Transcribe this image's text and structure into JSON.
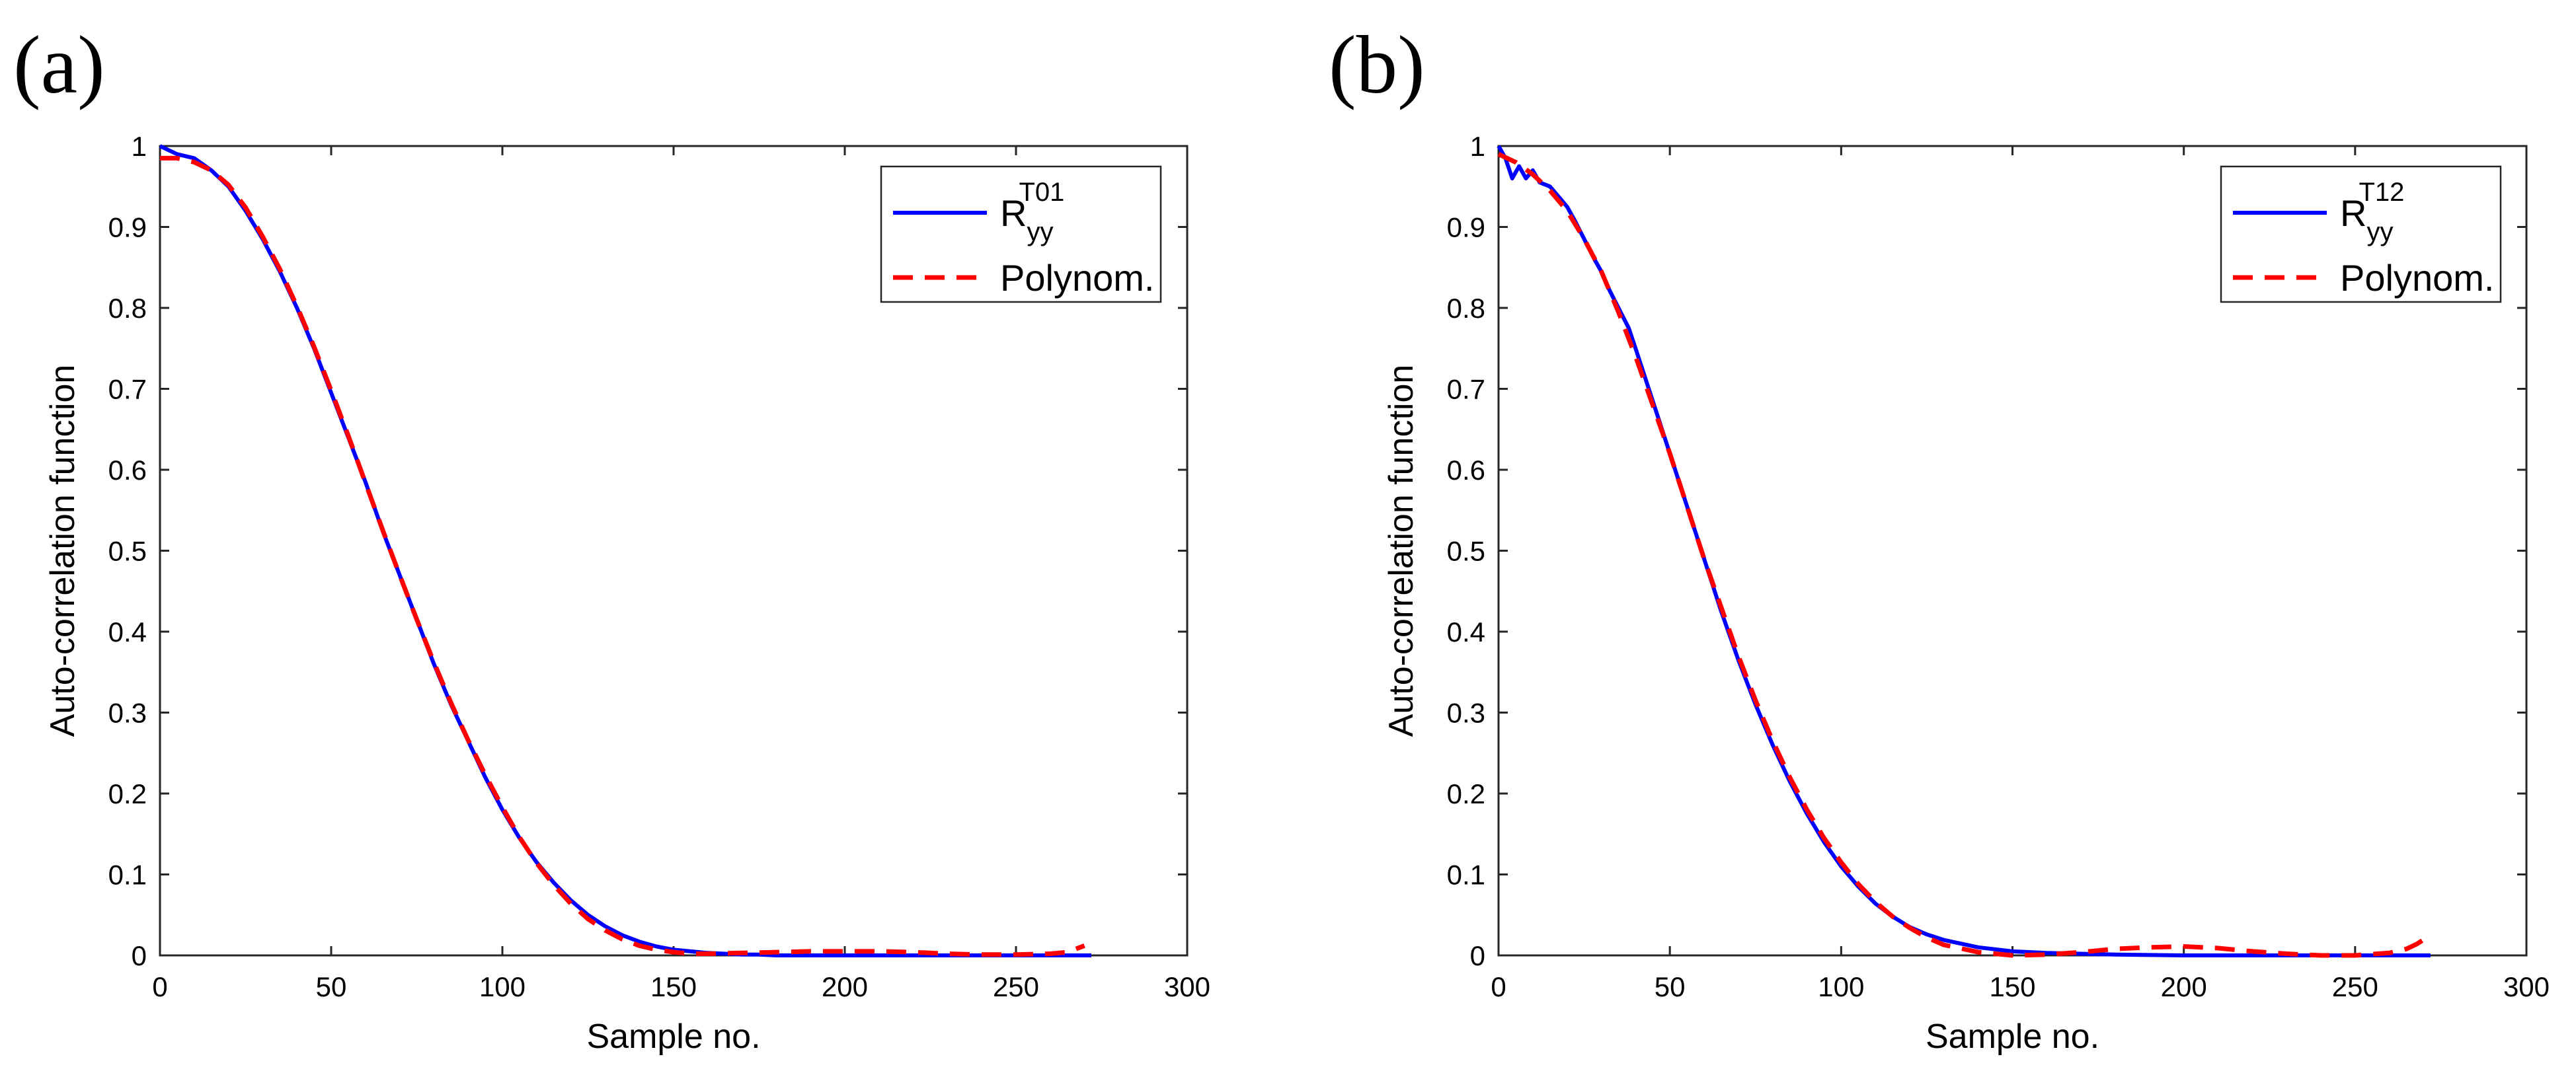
{
  "chart_data": [
    {
      "type": "line",
      "panel_label": "(a)",
      "xlabel": "Sample no.",
      "ylabel": "Auto-correlation function",
      "xlim": [
        0,
        300
      ],
      "ylim": [
        0,
        1
      ],
      "xticks": [
        0,
        50,
        100,
        150,
        200,
        250,
        300
      ],
      "yticks": [
        0,
        0.1,
        0.2,
        0.3,
        0.4,
        0.5,
        0.6,
        0.7,
        0.8,
        0.9,
        1
      ],
      "grid": false,
      "legend_position": "top-right",
      "series": [
        {
          "name": "R_yy^T01",
          "legend_base": "R",
          "legend_sub": "yy",
          "legend_sup": "T01",
          "color": "#0000FF",
          "style": "solid",
          "x": [
            0,
            5,
            10,
            15,
            20,
            25,
            30,
            35,
            40,
            45,
            50,
            55,
            60,
            65,
            70,
            75,
            80,
            85,
            90,
            95,
            100,
            105,
            110,
            115,
            120,
            125,
            130,
            135,
            140,
            145,
            150,
            155,
            160,
            165,
            170,
            175,
            180,
            190,
            200,
            220,
            240,
            260,
            272
          ],
          "y": [
            1.0,
            0.99,
            0.985,
            0.97,
            0.95,
            0.92,
            0.885,
            0.845,
            0.8,
            0.75,
            0.695,
            0.64,
            0.585,
            0.525,
            0.47,
            0.415,
            0.36,
            0.31,
            0.265,
            0.22,
            0.18,
            0.145,
            0.115,
            0.09,
            0.068,
            0.05,
            0.036,
            0.025,
            0.017,
            0.011,
            0.007,
            0.005,
            0.003,
            0.002,
            0.001,
            0.001,
            0.0,
            0.0,
            0.0,
            0.0,
            0.0,
            0.0,
            0.0
          ]
        },
        {
          "name": "Polynom.",
          "legend_base": "Polynom.",
          "color": "#FF0000",
          "style": "dashed",
          "x": [
            0,
            5,
            10,
            15,
            20,
            25,
            30,
            35,
            40,
            45,
            50,
            55,
            60,
            65,
            70,
            75,
            80,
            85,
            90,
            95,
            100,
            105,
            110,
            115,
            120,
            125,
            130,
            135,
            140,
            145,
            150,
            155,
            160,
            170,
            180,
            190,
            200,
            210,
            220,
            230,
            240,
            250,
            260,
            265,
            270
          ],
          "y": [
            0.985,
            0.985,
            0.98,
            0.97,
            0.952,
            0.924,
            0.888,
            0.848,
            0.802,
            0.752,
            0.698,
            0.642,
            0.584,
            0.526,
            0.47,
            0.415,
            0.362,
            0.312,
            0.266,
            0.223,
            0.183,
            0.146,
            0.114,
            0.087,
            0.064,
            0.045,
            0.031,
            0.02,
            0.012,
            0.007,
            0.004,
            0.002,
            0.002,
            0.003,
            0.004,
            0.005,
            0.005,
            0.005,
            0.004,
            0.002,
            0.001,
            0.001,
            0.002,
            0.004,
            0.012
          ]
        }
      ]
    },
    {
      "type": "line",
      "panel_label": "(b)",
      "xlabel": "Sample no.",
      "ylabel": "Auto-correlation function",
      "xlim": [
        0,
        300
      ],
      "ylim": [
        0,
        1
      ],
      "xticks": [
        0,
        50,
        100,
        150,
        200,
        250,
        300
      ],
      "yticks": [
        0,
        0.1,
        0.2,
        0.3,
        0.4,
        0.5,
        0.6,
        0.7,
        0.8,
        0.9,
        1
      ],
      "grid": false,
      "legend_position": "top-right",
      "series": [
        {
          "name": "R_yy^T12",
          "legend_base": "R",
          "legend_sub": "yy",
          "legend_sup": "T12",
          "color": "#0000FF",
          "style": "solid",
          "x": [
            0,
            2,
            4,
            6,
            8,
            10,
            12,
            15,
            18,
            20,
            22,
            25,
            28,
            30,
            32,
            35,
            38,
            40,
            45,
            50,
            55,
            60,
            65,
            70,
            75,
            80,
            85,
            90,
            95,
            100,
            105,
            110,
            115,
            120,
            125,
            130,
            140,
            150,
            160,
            170,
            180,
            200,
            220,
            240,
            260,
            272
          ],
          "y": [
            1.0,
            0.985,
            0.96,
            0.975,
            0.96,
            0.97,
            0.955,
            0.95,
            0.935,
            0.925,
            0.91,
            0.885,
            0.86,
            0.845,
            0.825,
            0.8,
            0.775,
            0.75,
            0.685,
            0.62,
            0.555,
            0.49,
            0.425,
            0.365,
            0.31,
            0.26,
            0.215,
            0.175,
            0.14,
            0.11,
            0.085,
            0.064,
            0.048,
            0.035,
            0.026,
            0.019,
            0.01,
            0.005,
            0.003,
            0.002,
            0.001,
            0.0,
            0.0,
            0.0,
            0.0,
            0.0
          ]
        },
        {
          "name": "Polynom.",
          "legend_base": "Polynom.",
          "color": "#FF0000",
          "style": "dashed",
          "x": [
            0,
            5,
            10,
            15,
            20,
            25,
            30,
            35,
            40,
            45,
            50,
            55,
            60,
            65,
            70,
            75,
            80,
            85,
            90,
            95,
            100,
            105,
            110,
            115,
            120,
            125,
            130,
            140,
            150,
            160,
            170,
            180,
            190,
            200,
            210,
            220,
            230,
            240,
            250,
            260,
            265,
            268,
            272
          ],
          "y": [
            0.99,
            0.98,
            0.965,
            0.945,
            0.92,
            0.885,
            0.845,
            0.795,
            0.74,
            0.68,
            0.62,
            0.555,
            0.49,
            0.43,
            0.37,
            0.315,
            0.265,
            0.22,
            0.18,
            0.145,
            0.115,
            0.088,
            0.066,
            0.048,
            0.034,
            0.022,
            0.013,
            0.004,
            0.0,
            0.001,
            0.004,
            0.008,
            0.01,
            0.011,
            0.009,
            0.005,
            0.002,
            0.0,
            0.0,
            0.003,
            0.008,
            0.014,
            0.025
          ]
        }
      ]
    }
  ]
}
